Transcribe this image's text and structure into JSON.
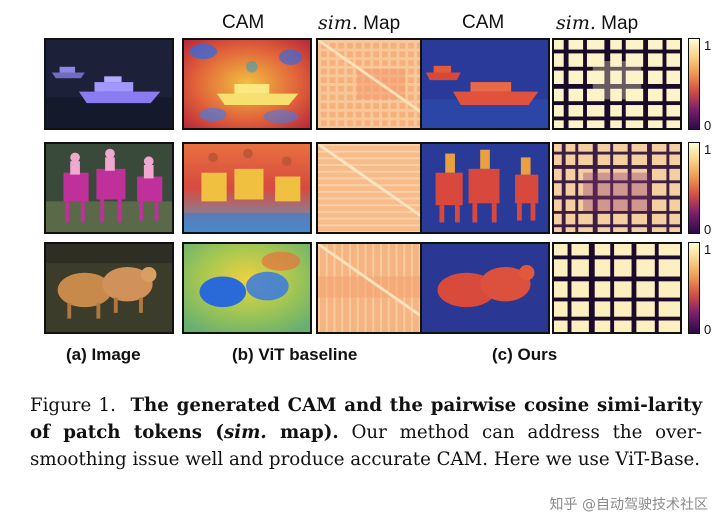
{
  "column_headers": {
    "baseline_cam": "CAM",
    "baseline_sim_italic": "sim.",
    "baseline_sim_rest": " Map",
    "ours_cam": "CAM",
    "ours_sim_italic": "sim.",
    "ours_sim_rest": " Map"
  },
  "colorbar_ticks": {
    "max": "1",
    "min": "0"
  },
  "subfigure_labels": {
    "image": "(a) Image",
    "vit_baseline": "(b) ViT baseline",
    "ours": "(c) Ours"
  },
  "rows": [
    {
      "subject": "boats"
    },
    {
      "subject": "horses-and-riders"
    },
    {
      "subject": "sheep"
    }
  ],
  "caption": {
    "prefix": "Figure 1.",
    "bold_part1": "The generated CAM and the pairwise cosine simi-larity of patch tokens (",
    "bold_italic": "sim.",
    "bold_part2": " map).",
    "rest": " Our method can address the over-smoothing issue well and produce accurate CAM. Here we use ViT-Base."
  },
  "watermark": "知乎 @自动驾驶技术社区",
  "colors": {
    "text": "#111111",
    "border": "#111111",
    "watermark": "#8a8a8a"
  }
}
